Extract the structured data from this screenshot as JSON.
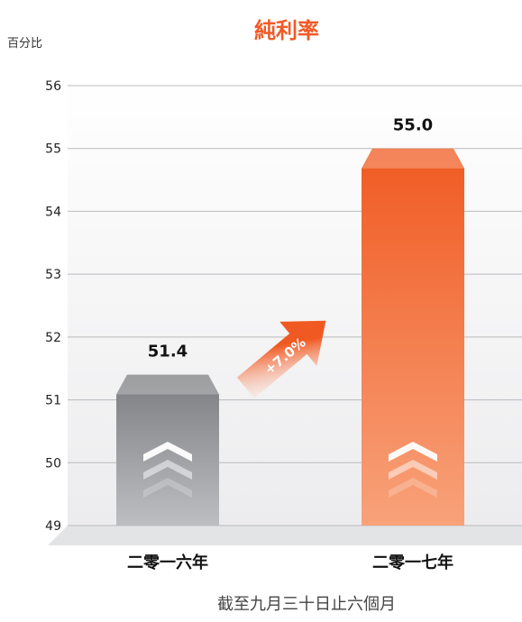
{
  "chart_data": {
    "type": "bar",
    "title": "純利率",
    "ylabel": "百分比",
    "xlabel": "截至九月三十日止六個月",
    "categories": [
      "二零一六年",
      "二零一七年"
    ],
    "values": [
      51.4,
      55.0
    ],
    "value_labels": [
      "51.4",
      "55.0"
    ],
    "ylim": [
      49,
      56
    ],
    "yticks": [
      49,
      50,
      51,
      52,
      53,
      54,
      55,
      56
    ],
    "grid": true,
    "change_label": "+7.0%",
    "colors": {
      "title": "#f05a28",
      "bar_2016_top": "#7c7d80",
      "bar_2016_bottom": "#bdbec1",
      "bar_2017_top": "#f05a22",
      "bar_2017_bottom": "#f8a27a",
      "arrow": "#f05a22",
      "grid": "#b9babd",
      "background": "#f1f1f2",
      "floor": "#e3e4e6"
    }
  }
}
